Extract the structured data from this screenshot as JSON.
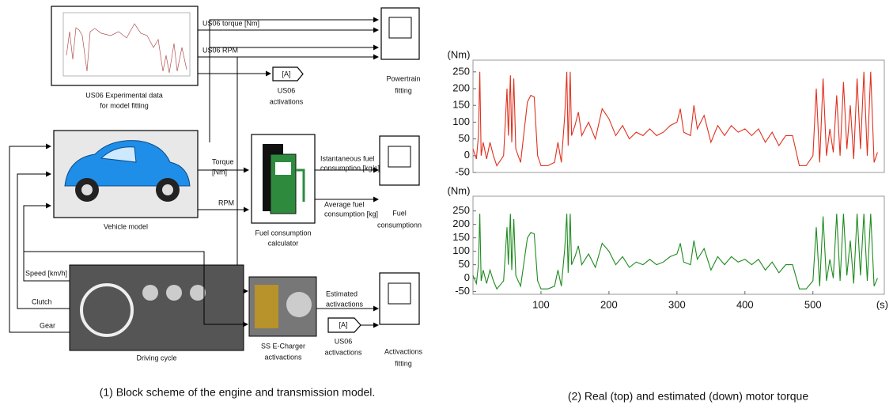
{
  "diagram": {
    "experimental": [
      "US06 Experimental data",
      "for model fitting"
    ],
    "torque_signal": "US06 torque [Nm]",
    "rpm_signal": "US06 RPM",
    "goto_tag": "[A]",
    "goto_label": [
      "US06",
      "activations"
    ],
    "powertrain_scope": [
      "Powertrain",
      "fitting"
    ],
    "vehicle": "Vehicle model",
    "torque_out": [
      "Torque",
      "[Nm]"
    ],
    "rpm_out": "RPM",
    "inst_fuel": [
      "Istantaneous fuel",
      "consumption [kg/s]"
    ],
    "avg_fuel": [
      "Average fuel",
      "consumption [kg]"
    ],
    "fuel_calc": [
      "Fuel consumption",
      "calculator"
    ],
    "fuel_scope": [
      "Fuel",
      "consumptionn"
    ],
    "speed": "Speed [km/h]",
    "clutch": "Clutch",
    "gear": "Gear",
    "driving_cycle": "Driving cycle",
    "estimated": [
      "Estimated",
      "activactions"
    ],
    "from_tag": "[A]",
    "from_label": [
      "US06",
      "activactions"
    ],
    "echarger": [
      "SS E-Charger",
      "activactions"
    ],
    "act_scope": [
      "Activactions",
      "fitting"
    ]
  },
  "captions": [
    "(1)  Block scheme of the engine and transmission model.",
    "(2)  Real (top) and estimated (down) motor torque"
  ],
  "chart_data": [
    {
      "type": "line",
      "y_label": "(Nm)",
      "xlim": [
        0,
        605
      ],
      "ylim": [
        -50,
        285
      ],
      "yticks": [
        -50,
        0,
        50,
        100,
        150,
        200,
        250
      ],
      "x": [
        0,
        5,
        8,
        10,
        12,
        15,
        20,
        25,
        30,
        35,
        45,
        50,
        52,
        55,
        57,
        60,
        63,
        70,
        80,
        85,
        90,
        95,
        100,
        110,
        120,
        125,
        130,
        135,
        138,
        140,
        143,
        145,
        150,
        155,
        160,
        170,
        180,
        190,
        200,
        210,
        220,
        230,
        240,
        250,
        260,
        270,
        280,
        290,
        300,
        305,
        310,
        320,
        325,
        330,
        340,
        350,
        360,
        370,
        380,
        390,
        400,
        410,
        420,
        430,
        440,
        450,
        460,
        470,
        480,
        490,
        500,
        505,
        510,
        515,
        520,
        525,
        530,
        535,
        540,
        545,
        550,
        555,
        560,
        565,
        570,
        575,
        580,
        585,
        590,
        595
      ],
      "series": [
        {
          "color": "#e0301e",
          "values": [
            20,
            -10,
            60,
            250,
            0,
            40,
            -10,
            40,
            0,
            -30,
            0,
            200,
            60,
            240,
            40,
            230,
            20,
            -20,
            160,
            180,
            175,
            0,
            -30,
            -30,
            -20,
            40,
            -20,
            120,
            250,
            30,
            250,
            60,
            90,
            130,
            60,
            100,
            50,
            140,
            110,
            60,
            90,
            50,
            70,
            60,
            80,
            60,
            70,
            90,
            100,
            140,
            70,
            60,
            150,
            80,
            120,
            40,
            90,
            60,
            90,
            70,
            80,
            60,
            80,
            40,
            70,
            30,
            60,
            60,
            -30,
            -30,
            0,
            200,
            -20,
            230,
            0,
            80,
            10,
            180,
            0,
            220,
            20,
            150,
            -10,
            230,
            20,
            250,
            0,
            250,
            -20,
            10
          ]
        }
      ]
    },
    {
      "type": "line",
      "y_label": "(Nm)",
      "x_label": "(s)",
      "xlim": [
        0,
        605
      ],
      "ylim": [
        -60,
        305
      ],
      "yticks": [
        -50,
        0,
        50,
        100,
        150,
        200,
        250
      ],
      "xticks": [
        100,
        200,
        300,
        400,
        500
      ],
      "x": [
        0,
        5,
        8,
        10,
        12,
        15,
        20,
        25,
        30,
        35,
        45,
        50,
        52,
        55,
        57,
        60,
        63,
        70,
        80,
        85,
        90,
        95,
        100,
        110,
        120,
        125,
        130,
        135,
        138,
        140,
        143,
        145,
        150,
        155,
        160,
        170,
        180,
        190,
        200,
        210,
        220,
        230,
        240,
        250,
        260,
        270,
        280,
        290,
        300,
        305,
        310,
        320,
        325,
        330,
        340,
        350,
        360,
        370,
        380,
        390,
        400,
        410,
        420,
        430,
        440,
        450,
        460,
        470,
        480,
        490,
        500,
        505,
        510,
        515,
        520,
        525,
        530,
        535,
        540,
        545,
        550,
        555,
        560,
        565,
        570,
        575,
        580,
        585,
        590,
        595
      ],
      "series": [
        {
          "color": "#1e8a1e",
          "values": [
            10,
            -20,
            50,
            240,
            -10,
            30,
            -20,
            30,
            -10,
            -40,
            -10,
            190,
            50,
            240,
            30,
            220,
            10,
            -30,
            150,
            170,
            165,
            -10,
            -40,
            -40,
            -30,
            30,
            -30,
            110,
            240,
            20,
            240,
            50,
            80,
            120,
            50,
            90,
            40,
            130,
            100,
            50,
            80,
            40,
            60,
            50,
            70,
            50,
            60,
            80,
            90,
            130,
            60,
            50,
            140,
            70,
            110,
            30,
            80,
            50,
            80,
            60,
            70,
            50,
            70,
            30,
            60,
            20,
            50,
            50,
            -40,
            -40,
            -10,
            190,
            -30,
            230,
            -10,
            70,
            0,
            240,
            -10,
            240,
            10,
            140,
            -20,
            240,
            10,
            240,
            -10,
            240,
            -30,
            0
          ]
        }
      ]
    }
  ]
}
